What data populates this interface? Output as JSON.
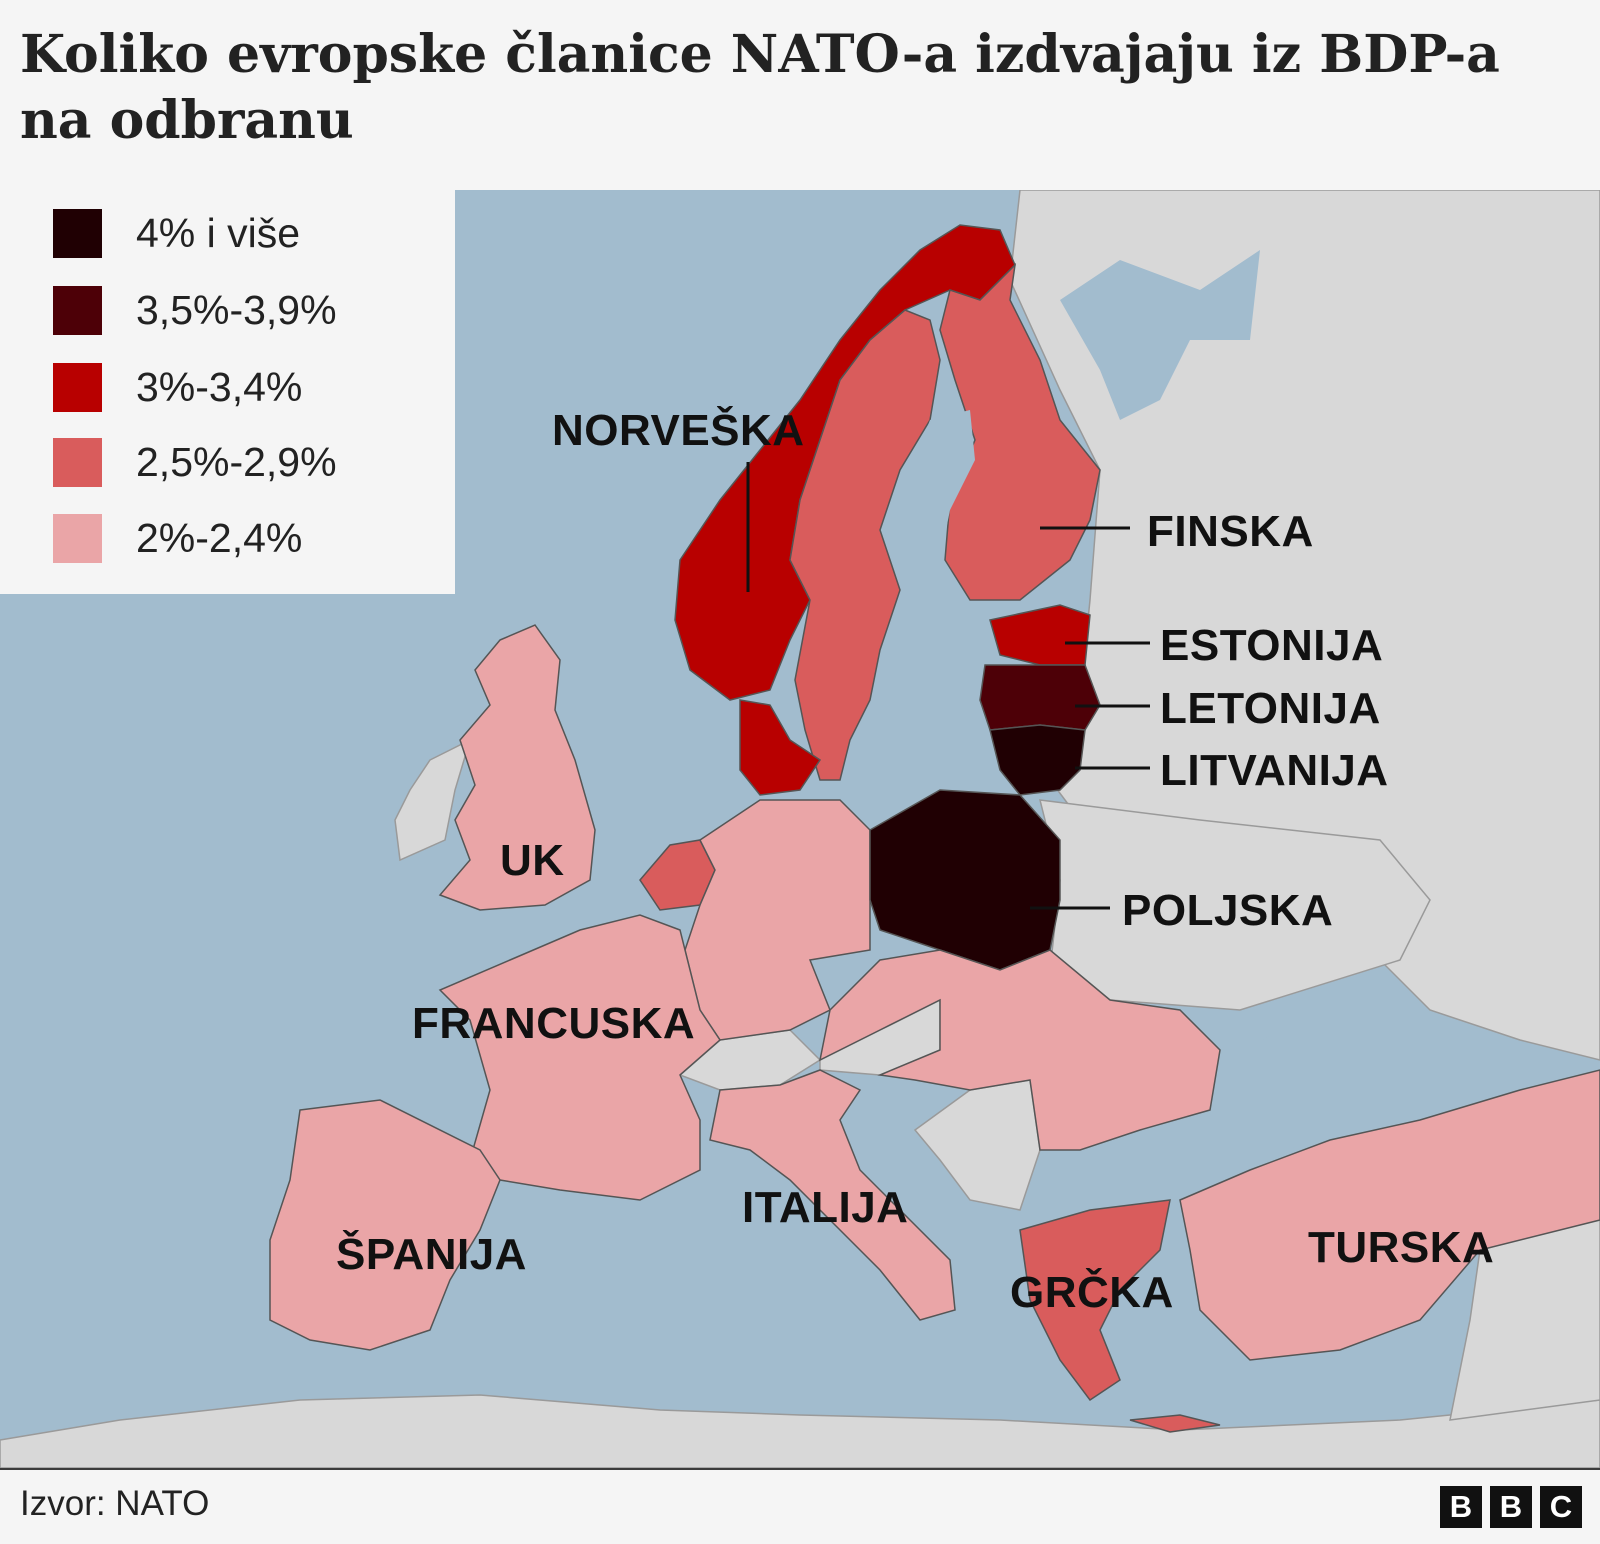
{
  "title": "Koliko evropske članice NATO-a izdvajaju iz BDP-a na odbranu",
  "legend": {
    "items": [
      {
        "label": "4% i više",
        "color": "#200003"
      },
      {
        "label": "3,5%-3,9%",
        "color": "#4d0007"
      },
      {
        "label": "3%-3,4%",
        "color": "#b80000"
      },
      {
        "label": "2,5%-2,9%",
        "color": "#d95c5c"
      },
      {
        "label": "2%-2,4%",
        "color": "#eaa5a7"
      }
    ]
  },
  "colors": {
    "sea": "#a2bcce",
    "non_member": "#d8d8d8",
    "border": "#555555"
  },
  "countries": {
    "norway": {
      "label": "NORVEŠKA",
      "category": "3%-3,4%"
    },
    "finland": {
      "label": "FINSKA",
      "category": "2,5%-2,9%"
    },
    "estonia": {
      "label": "ESTONIJA",
      "category": "3%-3,4%"
    },
    "latvia": {
      "label": "LETONIJA",
      "category": "3,5%-3,9%"
    },
    "lithuania": {
      "label": "LITVANIJA",
      "category": "4% i više"
    },
    "poland": {
      "label": "POLJSKA",
      "category": "4% i više"
    },
    "uk": {
      "label": "UK",
      "category": "2%-2,4%"
    },
    "france": {
      "label": "FRANCUSKA",
      "category": "2%-2,4%"
    },
    "italy": {
      "label": "ITALIJA",
      "category": "2%-2,4%"
    },
    "spain": {
      "label": "ŠPANIJA",
      "category": "2%-2,4%"
    },
    "greece": {
      "label": "GRČKA",
      "category": "2,5%-2,9%"
    },
    "turkey": {
      "label": "TURSKA",
      "category": "2%-2,4%"
    }
  },
  "source": "Izvor: NATO",
  "logo": [
    "B",
    "B",
    "C"
  ]
}
